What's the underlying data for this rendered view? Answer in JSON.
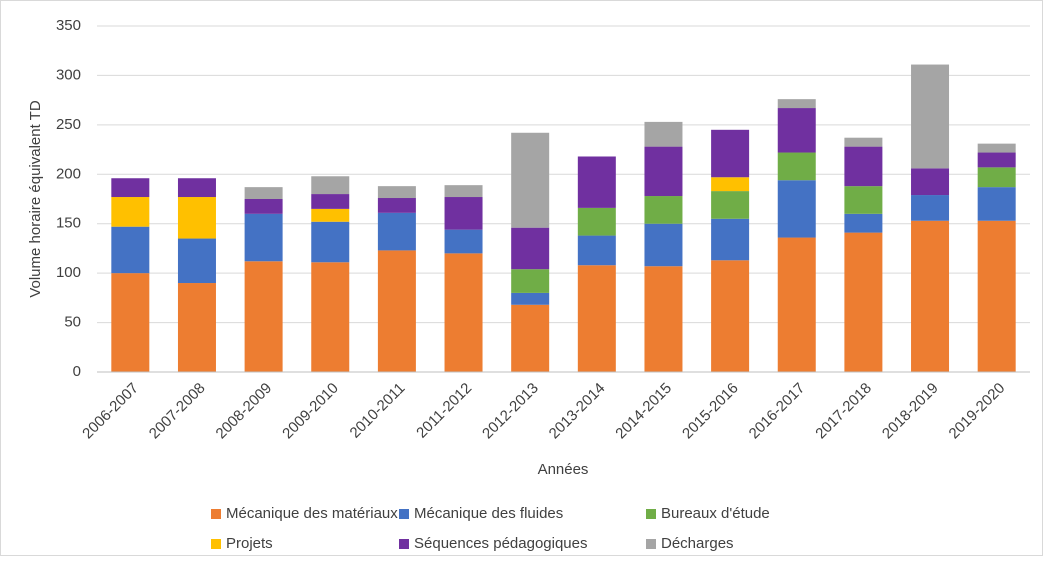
{
  "chart_data": {
    "type": "stacked_bar",
    "ylabel": "Volume horaire équivalent TD",
    "xlabel": "Années",
    "categories": [
      "2006-2007",
      "2007-2008",
      "2008-2009",
      "2009-2010",
      "2010-2011",
      "2011-2012",
      "2012-2013",
      "2013-2014",
      "2014-2015",
      "2015-2016",
      "2016-2017",
      "2017-2018",
      "2018-2019",
      "2019-2020"
    ],
    "series": [
      {
        "name": "Mécanique des matériaux",
        "color": "#ED7D31",
        "values": [
          100,
          90,
          112,
          111,
          123,
          120,
          68,
          108,
          107,
          113,
          136,
          141,
          153,
          153
        ]
      },
      {
        "name": "Mécanique des fluides",
        "color": "#4472C4",
        "values": [
          47,
          45,
          48,
          41,
          38,
          24,
          12,
          30,
          43,
          42,
          58,
          19,
          26,
          34
        ]
      },
      {
        "name": "Bureaux d'étude",
        "color": "#70AD47",
        "values": [
          0,
          0,
          0,
          0,
          0,
          0,
          24,
          28,
          28,
          28,
          28,
          28,
          0,
          20
        ]
      },
      {
        "name": "Projets",
        "color": "#FFC000",
        "values": [
          30,
          42,
          0,
          13,
          0,
          0,
          0,
          0,
          0,
          14,
          0,
          0,
          0,
          0
        ]
      },
      {
        "name": "Séquences pédagogiques",
        "color": "#7030A0",
        "values": [
          19,
          19,
          15,
          15,
          15,
          33,
          42,
          52,
          50,
          48,
          45,
          40,
          27,
          15
        ]
      },
      {
        "name": "Décharges",
        "color": "#A5A5A5",
        "values": [
          0,
          0,
          12,
          18,
          12,
          12,
          96,
          0,
          25,
          0,
          9,
          9,
          105,
          9
        ]
      }
    ],
    "ylim": [
      0,
      350
    ],
    "yticks": [
      0,
      50,
      100,
      150,
      200,
      250,
      300,
      350
    ],
    "grid": true
  }
}
